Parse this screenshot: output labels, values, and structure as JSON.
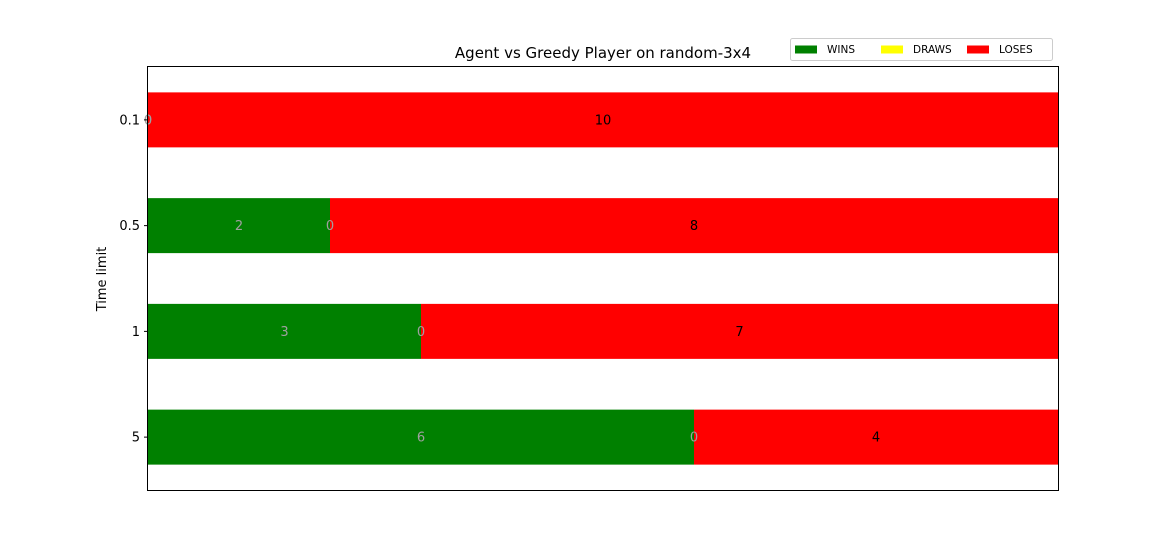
{
  "chart_data": {
    "type": "bar",
    "orientation": "horizontal",
    "stacked": true,
    "title": "Agent vs Greedy Player on random-3x4",
    "ylabel": "Time limit",
    "xlabel": "",
    "categories": [
      "0.1",
      "0.5",
      "1",
      "5"
    ],
    "xlim": [
      0,
      10
    ],
    "grid": false,
    "legend_position": "top-right",
    "series": [
      {
        "name": "WINS",
        "color": "#008000",
        "label_color": "#a0a0a0",
        "values": [
          0,
          2,
          3,
          6
        ]
      },
      {
        "name": "DRAWS",
        "color": "#ffff00",
        "label_color": "#a0a0a0",
        "values": [
          0,
          0,
          0,
          0
        ]
      },
      {
        "name": "LOSES",
        "color": "#ff0000",
        "label_color": "#000000",
        "values": [
          10,
          8,
          7,
          4
        ]
      }
    ]
  }
}
